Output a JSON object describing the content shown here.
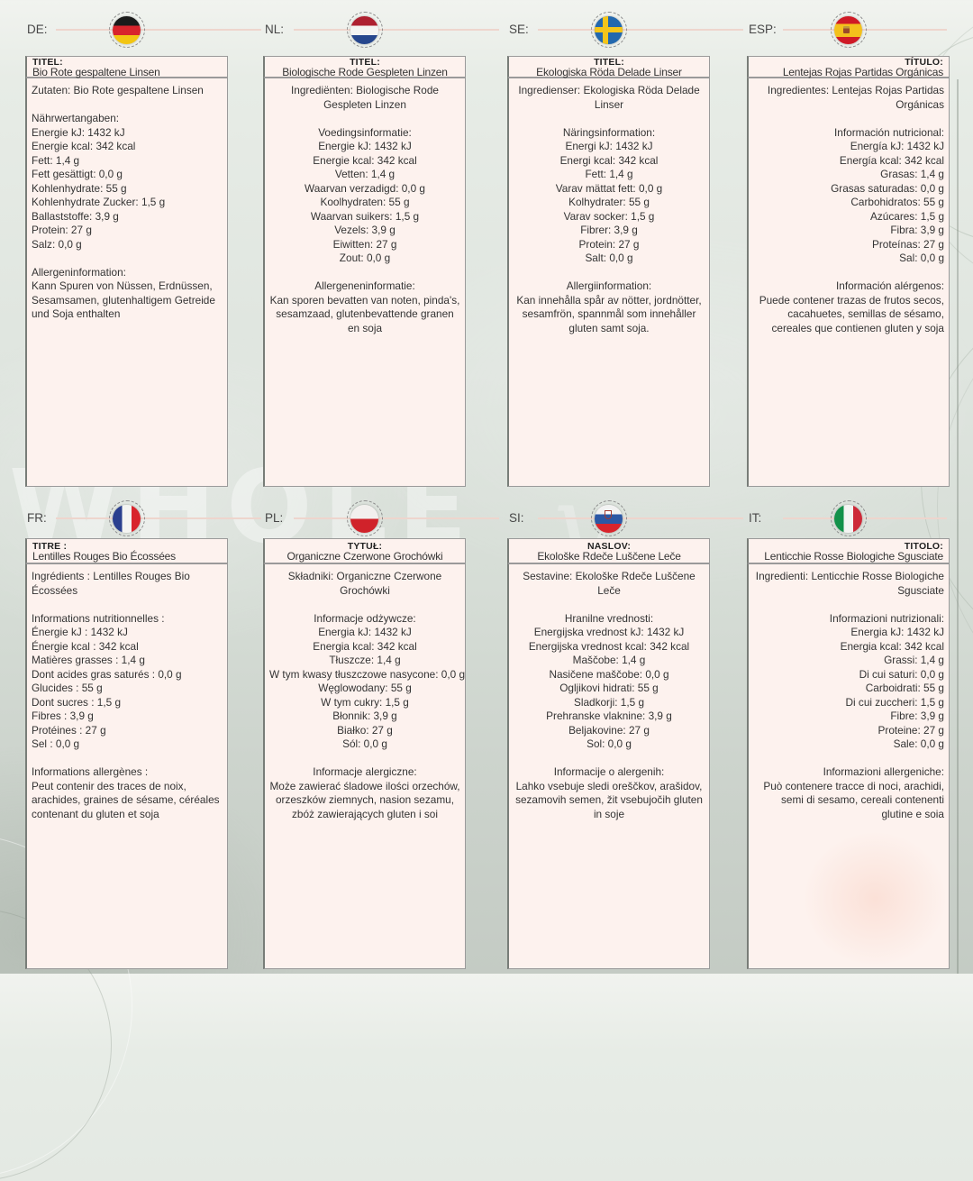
{
  "colors": {
    "panel_bg": "#fdf2ee",
    "panel_border": "#9a9a9a",
    "panel_border_heavy": "#787d78",
    "header_line": "#eed5cd",
    "text": "#333333",
    "label_color": "#474747"
  },
  "decor": {
    "watermark": "WHOLE",
    "watermark2": "y"
  },
  "panels": [
    {
      "code": "DE:",
      "flag": "germany",
      "align": "left",
      "title_label": "TITEL:",
      "title": "Bio Rote gespaltene Linsen",
      "ingredients": "Zutaten: Bio Rote gespaltene Linsen",
      "nutrition_header": "Nährwertangaben:",
      "nutrition": [
        "Energie kJ: 1432 kJ",
        "Energie kcal: 342 kcal",
        "Fett: 1,4 g",
        "Fett gesättigt: 0,0 g",
        "Kohlenhydrate: 55 g",
        "Kohlenhydrate Zucker: 1,5 g",
        "Ballaststoffe: 3,9 g",
        "Protein: 27 g",
        "Salz: 0,0 g"
      ],
      "allergen_header": "Allergeninformation:",
      "allergen_text": "Kann Spuren von Nüssen, Erdnüssen, Sesamsamen, glutenhaltigem Getreide und Soja enthalten"
    },
    {
      "code": "NL:",
      "flag": "netherlands",
      "align": "center",
      "title_label": "TITEL:",
      "title": "Biologische Rode Gespleten Linzen",
      "ingredients": "Ingrediënten: Biologische Rode Gespleten Linzen",
      "nutrition_header": "Voedingsinformatie:",
      "nutrition": [
        "Energie kJ: 1432 kJ",
        "Energie kcal: 342 kcal",
        "Vetten: 1,4 g",
        "Waarvan verzadigd: 0,0 g",
        "Koolhydraten: 55 g",
        "Waarvan suikers: 1,5 g",
        "Vezels: 3,9 g",
        "Eiwitten: 27 g",
        "Zout: 0,0 g"
      ],
      "allergen_header": "Allergeneninformatie:",
      "allergen_text": "Kan sporen bevatten van noten, pinda's, sesamzaad, glutenbevattende granen en soja"
    },
    {
      "code": "SE:",
      "flag": "sweden",
      "align": "center",
      "title_label": "TITEL:",
      "title": "Ekologiska Röda Delade Linser",
      "ingredients": "Ingredienser: Ekologiska Röda Delade Linser",
      "nutrition_header": "Näringsinformation:",
      "nutrition": [
        "Energi kJ: 1432 kJ",
        "Energi kcal: 342 kcal",
        "Fett: 1,4 g",
        "Varav mättat fett: 0,0 g",
        "Kolhydrater: 55 g",
        "Varav socker: 1,5 g",
        "Fibrer: 3,9 g",
        "Protein: 27 g",
        "Salt: 0,0 g"
      ],
      "allergen_header": "Allergiinformation:",
      "allergen_text": "Kan innehålla spår av nötter, jordnötter, sesamfrön, spannmål som innehåller gluten samt soja."
    },
    {
      "code": "ESP:",
      "flag": "spain",
      "align": "right",
      "title_label": "TÍTULO:",
      "title": "Lentejas Rojas Partidas Orgánicas",
      "ingredients": "Ingredientes: Lentejas Rojas Partidas Orgánicas",
      "nutrition_header": "Información nutricional:",
      "nutrition": [
        "Energía kJ: 1432 kJ",
        "Energía kcal: 342 kcal",
        "Grasas: 1,4 g",
        "Grasas saturadas: 0,0 g",
        "Carbohidratos: 55 g",
        "Azúcares: 1,5 g",
        "Fibra: 3,9 g",
        "Proteínas: 27 g",
        "Sal: 0,0 g"
      ],
      "allergen_header": "Información alérgenos:",
      "allergen_text": "Puede contener trazas de frutos secos, cacahuetes, semillas de sésamo, cereales que contienen gluten y soja"
    },
    {
      "code": "FR:",
      "flag": "france",
      "align": "left",
      "title_label": "TITRE :",
      "title": "Lentilles Rouges Bio Écossées",
      "ingredients": "Ingrédients : Lentilles Rouges Bio Écossées",
      "nutrition_header": "Informations nutritionnelles :",
      "nutrition": [
        "Énergie kJ : 1432 kJ",
        "Énergie kcal : 342 kcal",
        "Matières grasses : 1,4 g",
        "Dont acides gras saturés : 0,0 g",
        "Glucides : 55 g",
        "Dont sucres : 1,5 g",
        "Fibres : 3,9 g",
        "Protéines : 27 g",
        "Sel : 0,0 g"
      ],
      "allergen_header": "Informations allergènes :",
      "allergen_text": "Peut contenir des traces de noix, arachides, graines de sésame, céréales contenant du gluten et soja"
    },
    {
      "code": "PL:",
      "flag": "poland",
      "align": "center",
      "title_label": "TYTUŁ:",
      "title": "Organiczne Czerwone Grochówki",
      "ingredients": "Składniki: Organiczne Czerwone Grochówki",
      "nutrition_header": "Informacje odżywcze:",
      "nutrition": [
        "Energia kJ: 1432 kJ",
        "Energia kcal: 342 kcal",
        "Tłuszcze: 1,4 g",
        "W tym kwasy tłuszczowe nasycone: 0,0 g",
        "Węglowodany: 55 g",
        "W tym cukry: 1,5 g",
        "Błonnik: 3,9 g",
        "Białko: 27 g",
        "Sól: 0,0 g"
      ],
      "allergen_header": "Informacje alergiczne:",
      "allergen_text": "Może zawierać śladowe ilości orzechów, orzeszków ziemnych, nasion sezamu, zbóż zawierających gluten i soi"
    },
    {
      "code": "SI:",
      "flag": "slovenia",
      "align": "center",
      "title_label": "NASLOV:",
      "title": "Ekološke Rdeče Luščene Leče",
      "ingredients": "Sestavine: Ekološke Rdeče Luščene Leče",
      "nutrition_header": "Hranilne vrednosti:",
      "nutrition": [
        "Energijska vrednost kJ: 1432 kJ",
        "Energijska vrednost kcal: 342 kcal",
        "Maščobe: 1,4 g",
        "Nasičene maščobe: 0,0 g",
        "Ogljikovi hidrati: 55 g",
        "Sladkorji: 1,5 g",
        "Prehranske vlaknine: 3,9 g",
        "Beljakovine: 27 g",
        "Sol: 0,0 g"
      ],
      "allergen_header": "Informacije o alergenih:",
      "allergen_text": "Lahko vsebuje sledi oreščkov, arašidov, sezamovih semen, žit vsebujočih gluten in soje"
    },
    {
      "code": "IT:",
      "flag": "italy",
      "align": "right",
      "title_label": "TITOLO:",
      "title": "Lenticchie Rosse Biologiche Sgusciate",
      "ingredients": "Ingredienti: Lenticchie Rosse Biologiche Sgusciate",
      "nutrition_header": "Informazioni nutrizionali:",
      "nutrition": [
        "Energia kJ: 1432 kJ",
        "Energia kcal: 342 kcal",
        "Grassi: 1,4 g",
        "Di cui saturi: 0,0 g",
        "Carboidrati: 55 g",
        "Di cui zuccheri: 1,5 g",
        "Fibre: 3,9 g",
        "Proteine: 27 g",
        "Sale: 0,0 g"
      ],
      "allergen_header": "Informazioni allergeniche:",
      "allergen_text": "Può contenere tracce di noci, arachidi, semi di sesamo, cereali contenenti glutine e soia"
    }
  ]
}
